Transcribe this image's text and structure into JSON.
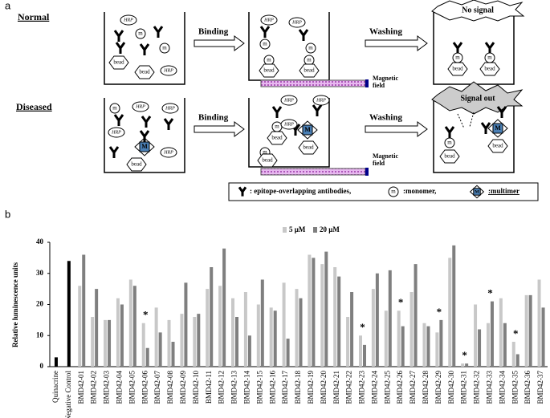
{
  "diagram": {
    "panel_label": "a",
    "rows": [
      {
        "label": "Normal",
        "step1": "Binding",
        "step2": "Washing",
        "result": "No signal"
      },
      {
        "label": "Diseased",
        "step1": "Binding",
        "step2": "Washing",
        "result": "Signal out"
      }
    ],
    "magnet_lines": [
      "Magnetic",
      "field"
    ],
    "icons": {
      "hrp": "HRP",
      "monomer": "m",
      "bead": "bead",
      "multimer": "M"
    },
    "legend": {
      "antibodies": ": epitope-overlapping antibodies,",
      "monomer": ":monomer,",
      "multimer": ":multimer"
    }
  },
  "chart_data": {
    "type": "bar",
    "panel_label": "b",
    "y_label": "Relative luminescence units",
    "categories": [
      "Quinacrine",
      "Negative Control",
      "BMD42-01",
      "BMD42-02",
      "BMD42-03",
      "BMD42-04",
      "BMD42-05",
      "BMD42-06",
      "BMD42-07",
      "BMD42-08",
      "BMD42-09",
      "BMD42-10",
      "BMD42-11",
      "BMD42-12",
      "BMD42-13",
      "BMD42-14",
      "BMD42-15",
      "BMD42-16",
      "BMD42-17",
      "BMD42-18",
      "BMD42-19",
      "BMD42-20",
      "BMD42-21",
      "BMD42-22",
      "BMD42-23",
      "BMD42-24",
      "BMD42-25",
      "BMD42-26",
      "BMD42-27",
      "BMD42-28",
      "BMD42-29",
      "BMD42-30",
      "BMD42-31",
      "BMD42-32",
      "BMD42-33",
      "BMD42-34",
      "BMD42-35",
      "BMD42-36",
      "BMD42-37"
    ],
    "series": [
      {
        "color": "#000000",
        "values": [
          3,
          34,
          null,
          null,
          null,
          null,
          null,
          null,
          null,
          null,
          null,
          null,
          null,
          null,
          null,
          null,
          null,
          null,
          null,
          null,
          null,
          null,
          null,
          null,
          null,
          null,
          null,
          null,
          null,
          null,
          null,
          null,
          null,
          null,
          null,
          null,
          null,
          null,
          null
        ]
      },
      {
        "name": "5 µM",
        "color": "#c8c8c8",
        "values": [
          null,
          null,
          26,
          16,
          15,
          22,
          28,
          14,
          19,
          15,
          17,
          16,
          25,
          26,
          22,
          24,
          20,
          19,
          27,
          25,
          36,
          33,
          32,
          16,
          10,
          25,
          18,
          18,
          24,
          14,
          11,
          35,
          1,
          20,
          14,
          22,
          8,
          23,
          28
        ]
      },
      {
        "name": "20 µM",
        "color": "#7f7f7f",
        "values": [
          null,
          null,
          36,
          25,
          15,
          20,
          26,
          6,
          11,
          8,
          27,
          17,
          32,
          38,
          16,
          10,
          28,
          18,
          9,
          22,
          35,
          37,
          29,
          24,
          7,
          30,
          31,
          13,
          33,
          13,
          15,
          39,
          1,
          12,
          21,
          14,
          4,
          23,
          19
        ]
      }
    ],
    "markers": [
      null,
      null,
      null,
      null,
      null,
      null,
      null,
      "*",
      null,
      null,
      null,
      null,
      null,
      null,
      null,
      null,
      null,
      null,
      null,
      null,
      null,
      null,
      null,
      null,
      "*",
      null,
      null,
      "*",
      null,
      null,
      "*",
      null,
      "*",
      null,
      "*",
      null,
      "*",
      null,
      null
    ],
    "ylim": [
      0,
      40
    ],
    "yticks": [
      0,
      10,
      20,
      30,
      40
    ],
    "grid": false,
    "legend": "top"
  }
}
